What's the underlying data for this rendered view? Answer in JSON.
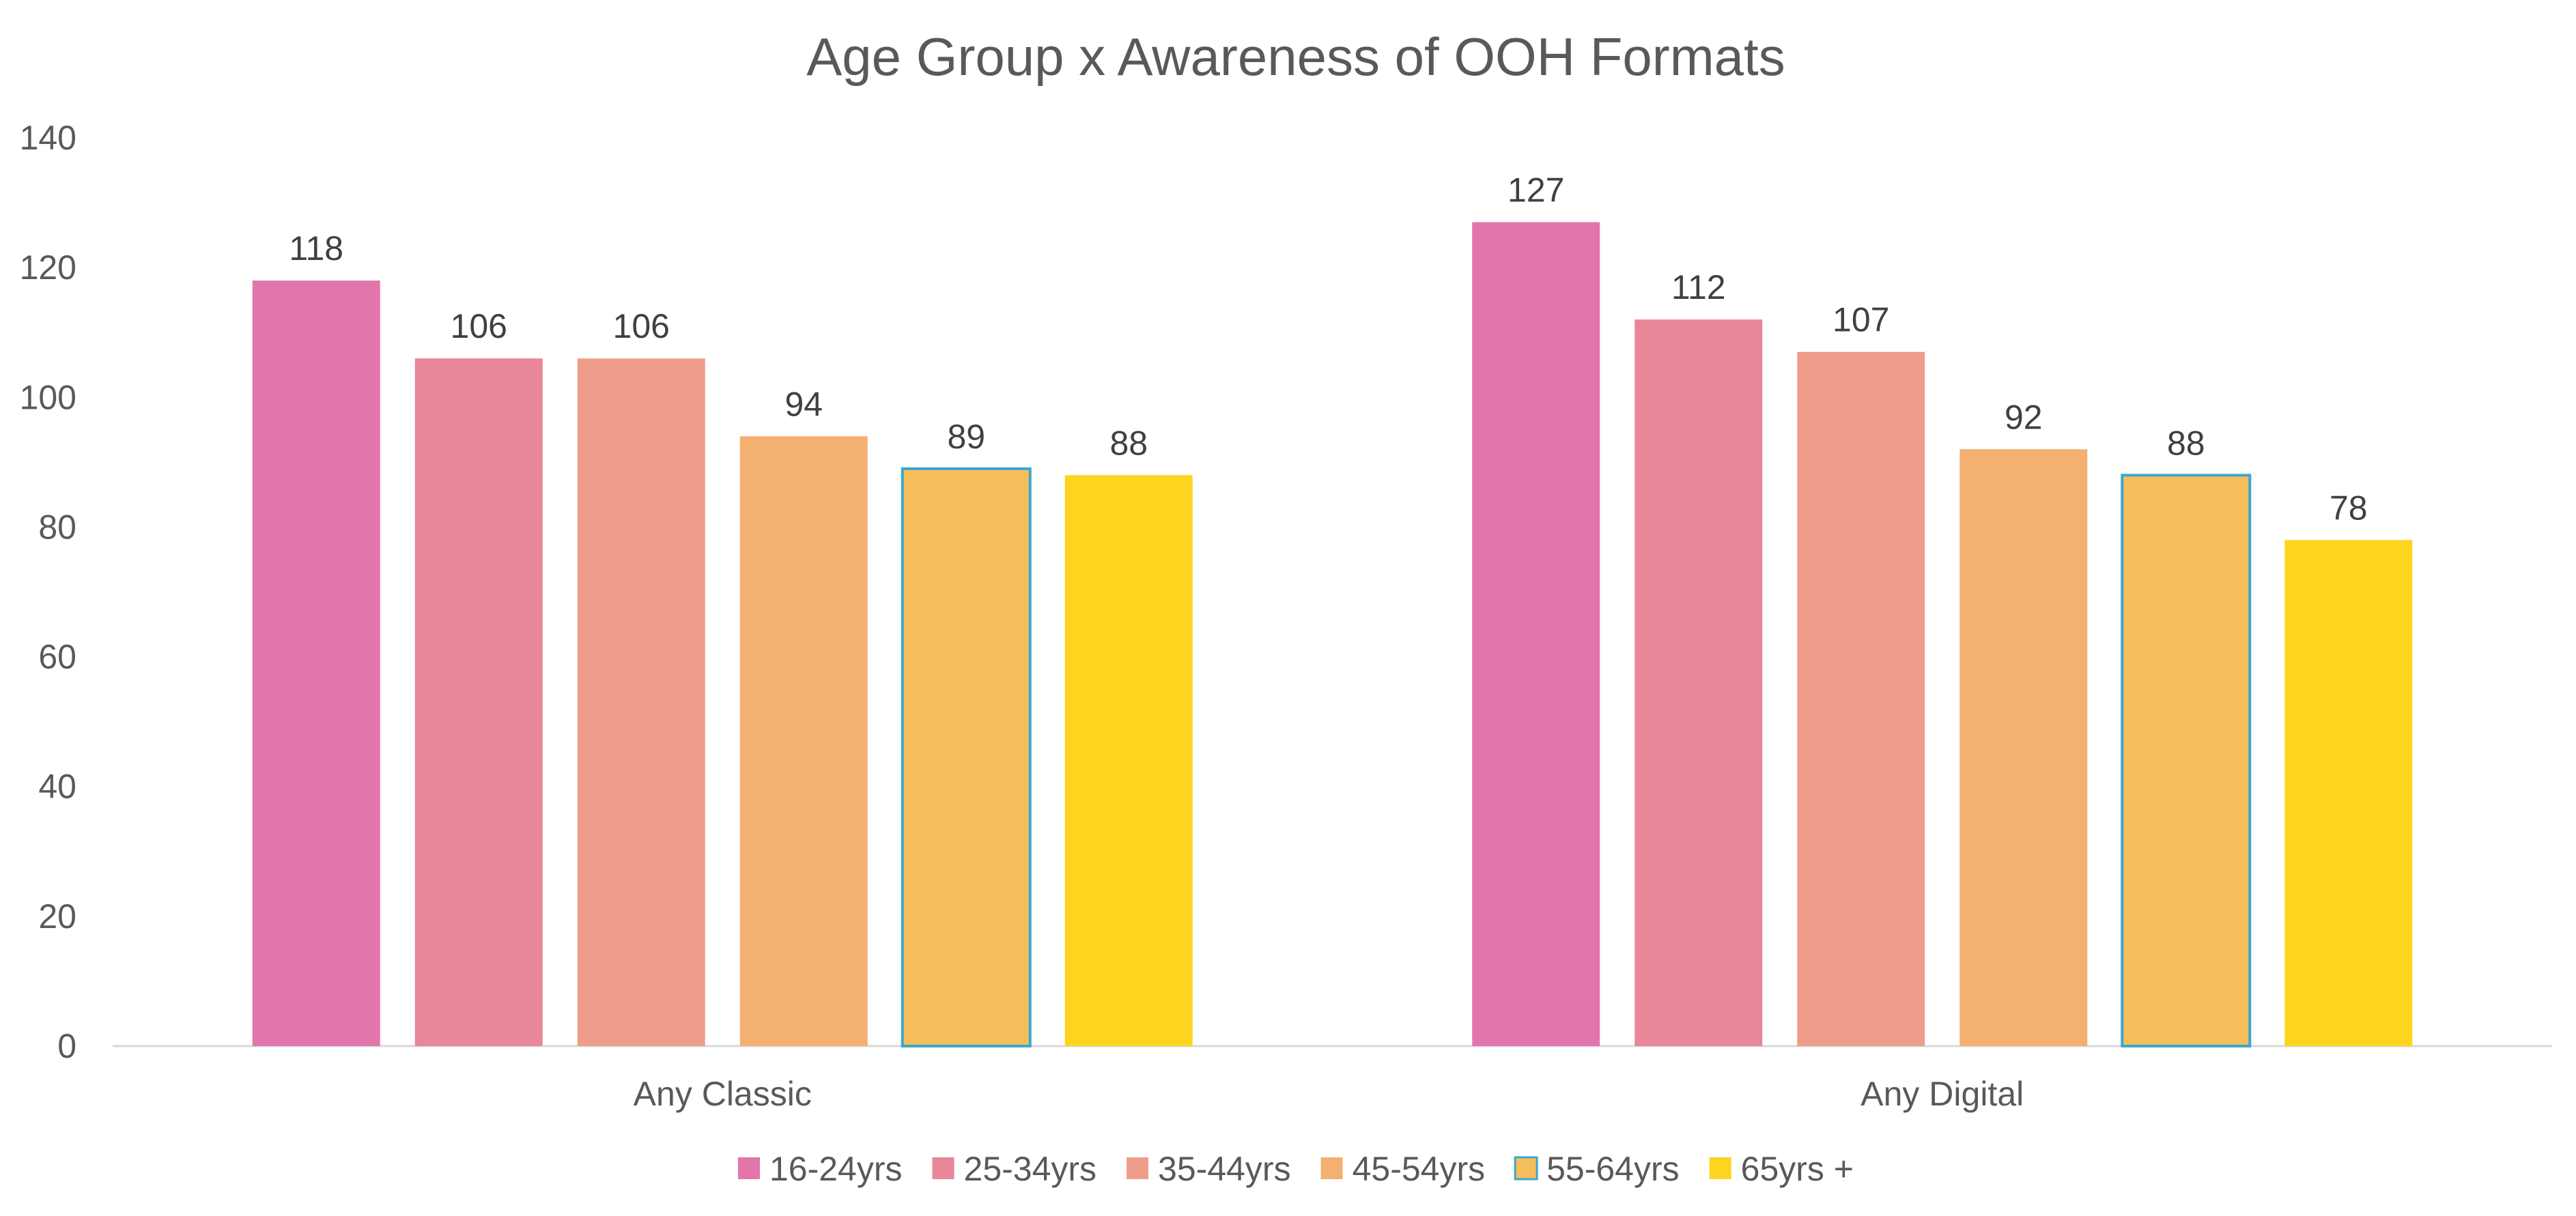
{
  "chart_data": {
    "type": "bar",
    "title": "Age Group x Awareness of OOH Formats",
    "xlabel": "",
    "ylabel": "",
    "ylim": [
      0,
      140
    ],
    "yticks": [
      0,
      20,
      40,
      60,
      80,
      100,
      120,
      140
    ],
    "grid": false,
    "legend_position": "bottom",
    "categories": [
      "Any Classic",
      "Any Digital"
    ],
    "series": [
      {
        "name": "16-24yrs",
        "values": [
          118,
          127
        ],
        "color": "#E276AC",
        "outline": ""
      },
      {
        "name": "25-34yrs",
        "values": [
          106,
          112
        ],
        "color": "#E8869A",
        "outline": ""
      },
      {
        "name": "35-44yrs",
        "values": [
          106,
          107
        ],
        "color": "#EE9D8A",
        "outline": ""
      },
      {
        "name": "45-54yrs",
        "values": [
          94,
          92
        ],
        "color": "#F3B071",
        "outline": ""
      },
      {
        "name": "55-64yrs",
        "values": [
          89,
          88
        ],
        "color": "#F6BE5A",
        "outline": "#3BA7CF"
      },
      {
        "name": "65yrs +",
        "values": [
          88,
          78
        ],
        "color": "#FDD41E",
        "outline": ""
      }
    ],
    "axis_color": "#D9D9D9"
  }
}
